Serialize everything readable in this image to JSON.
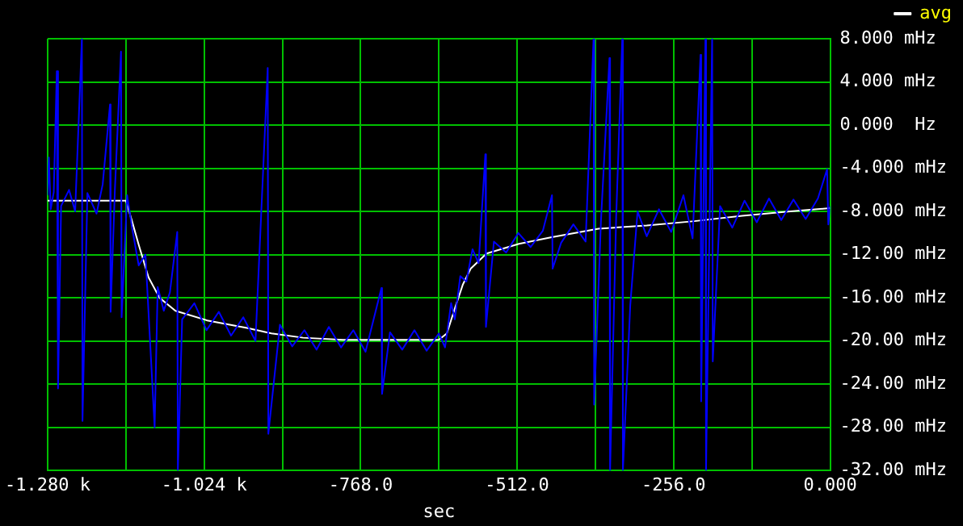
{
  "chart_data": {
    "type": "line",
    "xlabel": "sec",
    "xlim": [
      -1280,
      0
    ],
    "xticks": [
      {
        "value": -1280,
        "label": "-1.280 k"
      },
      {
        "value": -1152,
        "label": null
      },
      {
        "value": -1024,
        "label": "-1.024 k"
      },
      {
        "value": -896,
        "label": null
      },
      {
        "value": -768,
        "label": "-768.0"
      },
      {
        "value": -640,
        "label": null
      },
      {
        "value": -512,
        "label": "-512.0"
      },
      {
        "value": -384,
        "label": null
      },
      {
        "value": -256,
        "label": "-256.0"
      },
      {
        "value": -128,
        "label": null
      },
      {
        "value": 0,
        "label": "0.000"
      }
    ],
    "ylim": [
      -32,
      8
    ],
    "yticks": [
      {
        "value": 8,
        "label": "8.000 mHz"
      },
      {
        "value": 4,
        "label": "4.000 mHz"
      },
      {
        "value": 0,
        "label": "0.000  Hz"
      },
      {
        "value": -4,
        "label": "-4.000 mHz"
      },
      {
        "value": -8,
        "label": "-8.000 mHz"
      },
      {
        "value": -12,
        "label": "-12.00 mHz"
      },
      {
        "value": -16,
        "label": "-16.00 mHz"
      },
      {
        "value": -20,
        "label": "-20.00 mHz"
      },
      {
        "value": -24,
        "label": "-24.00 mHz"
      },
      {
        "value": -28,
        "label": "-28.00 mHz"
      },
      {
        "value": -32,
        "label": "-32.00 mHz"
      }
    ],
    "grid": true,
    "legend": "top right",
    "marker": "none",
    "line_style": "solid",
    "series": [
      {
        "color": "#0000ff",
        "x": [
          -1280,
          -1278,
          -1275,
          -1270,
          -1265,
          -1263,
          -1258,
          -1245,
          -1235,
          -1224,
          -1223,
          -1215,
          -1200,
          -1190,
          -1178,
          -1177,
          -1170,
          -1160,
          -1159,
          -1150,
          -1142,
          -1131,
          -1120,
          -1105,
          -1100,
          -1090,
          -1080,
          -1068,
          -1067,
          -1060,
          -1040,
          -1020,
          -1000,
          -980,
          -960,
          -940,
          -920,
          -919,
          -900,
          -880,
          -860,
          -840,
          -820,
          -800,
          -780,
          -760,
          -734,
          -733,
          -720,
          -700,
          -680,
          -660,
          -640,
          -630,
          -620,
          -614,
          -605,
          -595,
          -585,
          -575,
          -564,
          -563,
          -550,
          -530,
          -510,
          -490,
          -470,
          -455,
          -454,
          -440,
          -420,
          -400,
          -387,
          -386,
          -375,
          -361,
          -360,
          -350,
          -340,
          -339,
          -327,
          -315,
          -300,
          -280,
          -260,
          -240,
          -225,
          -212,
          -211,
          -204,
          -203,
          -193,
          -192,
          -180,
          -160,
          -140,
          -120,
          -100,
          -80,
          -60,
          -40,
          -20,
          -5,
          -3,
          0
        ],
        "values": [
          -6.5,
          -3.0,
          -7.8,
          -6.2,
          5.0,
          -24.4,
          -7.5,
          -6.0,
          -8.0,
          8,
          -27.4,
          -6.3,
          -8.2,
          -5.5,
          1.9,
          -17.3,
          -6.0,
          6.8,
          -17.8,
          -6.5,
          -9.5,
          -13.0,
          -12.0,
          -28,
          -15.0,
          -17.2,
          -15.5,
          -9.9,
          -32,
          -18.0,
          -16.5,
          -19.0,
          -17.3,
          -19.5,
          -17.8,
          -20.0,
          5.3,
          -28.6,
          -18.5,
          -20.5,
          -19.0,
          -20.8,
          -18.7,
          -20.6,
          -19.0,
          -21.0,
          -15.1,
          -24.9,
          -19.2,
          -20.8,
          -19.0,
          -20.9,
          -19.3,
          -20.6,
          -16.5,
          -18.0,
          -14.0,
          -14.5,
          -11.5,
          -12.8,
          -2.7,
          -18.7,
          -10.8,
          -11.8,
          -10.0,
          -11.3,
          -9.8,
          -6.5,
          -13.3,
          -10.9,
          -9.2,
          -10.8,
          8,
          -25.9,
          -9.0,
          6.2,
          -32,
          -8.5,
          8,
          -32,
          -16.7,
          -8.0,
          -10.3,
          -7.8,
          -9.9,
          -6.5,
          -10.5,
          6.5,
          -25.6,
          8,
          -32,
          8,
          -21.9,
          -7.5,
          -9.5,
          -7.0,
          -9.0,
          -6.8,
          -8.8,
          -6.9,
          -8.7,
          -6.8,
          -4.1,
          -9.2,
          -7.5
        ]
      },
      {
        "name": "avg",
        "color": "#ffffff",
        "x": [
          -1280,
          -1152,
          -1142,
          -1131,
          -1115,
          -1097,
          -1071,
          -1019,
          -954,
          -914,
          -862,
          -797,
          -718,
          -640,
          -627,
          -614,
          -601,
          -588,
          -562,
          -509,
          -457,
          -379,
          -300,
          -222,
          -144,
          -65,
          0
        ],
        "values": [
          -7.0,
          -7.0,
          -8.9,
          -11.1,
          -14.1,
          -16.0,
          -17.2,
          -18.1,
          -18.8,
          -19.3,
          -19.7,
          -19.9,
          -19.9,
          -19.9,
          -19.3,
          -17.0,
          -14.8,
          -13.3,
          -11.9,
          -11.0,
          -10.4,
          -9.6,
          -9.3,
          -8.9,
          -8.4,
          -8.0,
          -7.7
        ]
      }
    ]
  }
}
